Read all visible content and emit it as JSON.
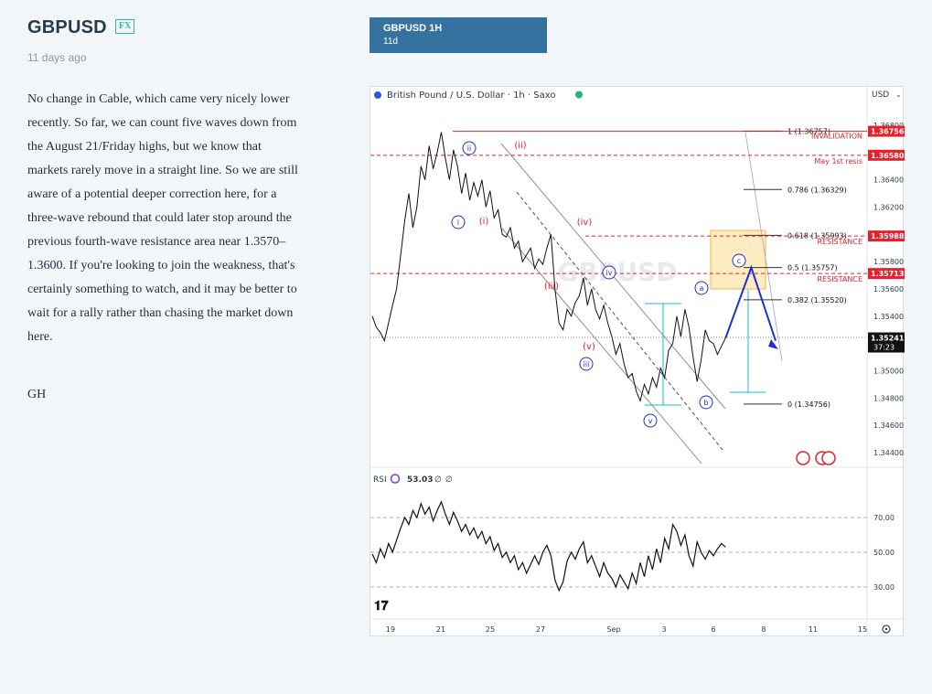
{
  "post": {
    "symbol": "GBPUSD",
    "badge": "FX",
    "time_ago": "11 days ago",
    "body": "No change in Cable, which came very nicely lower recently. So far, we can count five waves down from the August 21/Friday highs, but we know that markets rarely move in a straight line. So we are still aware of a potential deeper correction here, for a three-wave rebound that could later stop around the previous fourth-wave resistance area near 1.3570–1.3600. If you're looking to join the weakness, that's certainly something to watch, and it may be better to wait for a rally rather than chasing the market down here.",
    "signature": "GH"
  },
  "tab": {
    "title": "GBPUSD 1H",
    "subtitle": "11d"
  },
  "chart_header": {
    "instrument": "British Pound / U.S. Dollar · 1h · Saxo",
    "currency": "USD",
    "watermark": "GBPUSD"
  },
  "colors": {
    "accent": "#3572a0",
    "badge": "#2fb8a8",
    "red": "#e8202a",
    "blue": "#1f2fd0",
    "teal": "#19b9c9",
    "fib_box": "#f5a623"
  },
  "chart_data": {
    "type": "line",
    "price_axis": {
      "ticks": [
        "1.36800",
        "1.36400",
        "1.36200",
        "1.35800",
        "1.35600",
        "1.35400",
        "1.35000",
        "1.34800",
        "1.34600",
        "1.34400"
      ]
    },
    "price_labels": [
      {
        "value": "1.36756",
        "color": "red"
      },
      {
        "value": "1.36580",
        "color": "red"
      },
      {
        "value": "1.35988",
        "color": "red"
      },
      {
        "value": "1.35713",
        "color": "red"
      },
      {
        "value": "1.35241",
        "time": "37:23",
        "color": "black"
      }
    ],
    "fib_levels": [
      {
        "label": "1 (1.36757)",
        "price": 1.36757
      },
      {
        "label": "0.786 (1.36329)",
        "price": 1.36329
      },
      {
        "label": "0.618 (1.35993)",
        "price": 1.35993
      },
      {
        "label": "0.5 (1.35757)",
        "price": 1.35757
      },
      {
        "label": "0.382 (1.35520)",
        "price": 1.3552
      },
      {
        "label": "0 (1.34756)",
        "price": 1.34756
      }
    ],
    "annotations": [
      "INVALIDATION",
      "May 1st resis",
      "RESISTANCE",
      "RESISTANCE"
    ],
    "wave_labels_red": [
      "(i)",
      "(ii)",
      "(iii)",
      "(iv)",
      "(v)"
    ],
    "wave_labels_blue": [
      "i",
      "ii",
      "iii",
      "iv",
      "v",
      "a",
      "b",
      "c"
    ],
    "price_series": [
      [
        0,
        1.354
      ],
      [
        3,
        1.3532
      ],
      [
        6,
        1.3528
      ],
      [
        9,
        1.3522
      ],
      [
        12,
        1.3535
      ],
      [
        15,
        1.3548
      ],
      [
        18,
        1.356
      ],
      [
        21,
        1.3585
      ],
      [
        24,
        1.361
      ],
      [
        27,
        1.363
      ],
      [
        30,
        1.3605
      ],
      [
        33,
        1.362
      ],
      [
        36,
        1.365
      ],
      [
        39,
        1.364
      ],
      [
        42,
        1.3665
      ],
      [
        45,
        1.3648
      ],
      [
        48,
        1.366
      ],
      [
        51,
        1.3675
      ],
      [
        54,
        1.3656
      ],
      [
        57,
        1.364
      ],
      [
        60,
        1.3662
      ],
      [
        63,
        1.365
      ],
      [
        66,
        1.363
      ],
      [
        69,
        1.3645
      ],
      [
        72,
        1.3625
      ],
      [
        75,
        1.3638
      ],
      [
        78,
        1.3628
      ],
      [
        81,
        1.364
      ],
      [
        84,
        1.362
      ],
      [
        87,
        1.3632
      ],
      [
        90,
        1.3612
      ],
      [
        93,
        1.3618
      ],
      [
        96,
        1.36
      ],
      [
        99,
        1.3598
      ],
      [
        102,
        1.3605
      ],
      [
        105,
        1.359
      ],
      [
        108,
        1.3595
      ],
      [
        111,
        1.358
      ],
      [
        114,
        1.3585
      ],
      [
        117,
        1.359
      ],
      [
        120,
        1.3575
      ],
      [
        123,
        1.3582
      ],
      [
        126,
        1.3578
      ],
      [
        129,
        1.359
      ],
      [
        132,
        1.36
      ],
      [
        135,
        1.356
      ],
      [
        138,
        1.3535
      ],
      [
        141,
        1.353
      ],
      [
        144,
        1.3545
      ],
      [
        147,
        1.354
      ],
      [
        150,
        1.355
      ],
      [
        153,
        1.3555
      ],
      [
        156,
        1.3568
      ],
      [
        159,
        1.3548
      ],
      [
        162,
        1.356
      ],
      [
        165,
        1.3545
      ],
      [
        168,
        1.3538
      ],
      [
        171,
        1.3548
      ],
      [
        174,
        1.3535
      ],
      [
        177,
        1.3525
      ],
      [
        180,
        1.3512
      ],
      [
        183,
        1.352
      ],
      [
        186,
        1.3505
      ],
      [
        189,
        1.3495
      ],
      [
        192,
        1.3498
      ],
      [
        195,
        1.3485
      ],
      [
        198,
        1.3478
      ],
      [
        201,
        1.349
      ],
      [
        204,
        1.3483
      ],
      [
        207,
        1.3495
      ],
      [
        210,
        1.3488
      ],
      [
        213,
        1.3502
      ],
      [
        216,
        1.3495
      ],
      [
        219,
        1.3515
      ],
      [
        222,
        1.352
      ],
      [
        225,
        1.354
      ],
      [
        228,
        1.3525
      ],
      [
        231,
        1.3545
      ],
      [
        234,
        1.3532
      ],
      [
        237,
        1.351
      ],
      [
        240,
        1.3492
      ],
      [
        243,
        1.3508
      ],
      [
        246,
        1.353
      ],
      [
        249,
        1.3522
      ],
      [
        252,
        1.352
      ],
      [
        255,
        1.3512
      ],
      [
        258,
        1.3518
      ],
      [
        261,
        1.3524
      ]
    ],
    "projection": [
      [
        261,
        1.3524
      ],
      [
        280,
        1.35757
      ],
      [
        298,
        1.3522
      ]
    ],
    "x_ticks": [
      "19",
      "21",
      "25",
      "27",
      "Sep",
      "3",
      "6",
      "8",
      "11",
      "15"
    ],
    "rsi": {
      "label": "RSI",
      "value": "53.03",
      "levels": [
        "70.00",
        "50.00",
        "30.00"
      ],
      "series": [
        [
          0,
          49
        ],
        [
          3,
          44
        ],
        [
          6,
          52
        ],
        [
          9,
          47
        ],
        [
          12,
          55
        ],
        [
          15,
          50
        ],
        [
          18,
          57
        ],
        [
          21,
          64
        ],
        [
          24,
          70
        ],
        [
          27,
          66
        ],
        [
          30,
          74
        ],
        [
          33,
          70
        ],
        [
          36,
          78
        ],
        [
          39,
          72
        ],
        [
          42,
          76
        ],
        [
          45,
          68
        ],
        [
          48,
          74
        ],
        [
          51,
          79
        ],
        [
          54,
          72
        ],
        [
          57,
          66
        ],
        [
          60,
          73
        ],
        [
          63,
          68
        ],
        [
          66,
          62
        ],
        [
          69,
          66
        ],
        [
          72,
          60
        ],
        [
          75,
          64
        ],
        [
          78,
          58
        ],
        [
          81,
          62
        ],
        [
          84,
          55
        ],
        [
          87,
          59
        ],
        [
          90,
          51
        ],
        [
          93,
          55
        ],
        [
          96,
          47
        ],
        [
          99,
          50
        ],
        [
          102,
          44
        ],
        [
          105,
          48
        ],
        [
          108,
          40
        ],
        [
          111,
          44
        ],
        [
          114,
          38
        ],
        [
          117,
          43
        ],
        [
          120,
          48
        ],
        [
          123,
          43
        ],
        [
          126,
          50
        ],
        [
          129,
          54
        ],
        [
          132,
          48
        ],
        [
          135,
          34
        ],
        [
          138,
          28
        ],
        [
          141,
          33
        ],
        [
          144,
          45
        ],
        [
          147,
          50
        ],
        [
          150,
          46
        ],
        [
          153,
          52
        ],
        [
          156,
          56
        ],
        [
          159,
          44
        ],
        [
          162,
          48
        ],
        [
          165,
          42
        ],
        [
          168,
          36
        ],
        [
          171,
          44
        ],
        [
          174,
          38
        ],
        [
          177,
          35
        ],
        [
          180,
          30
        ],
        [
          183,
          37
        ],
        [
          186,
          33
        ],
        [
          189,
          29
        ],
        [
          192,
          38
        ],
        [
          195,
          32
        ],
        [
          198,
          44
        ],
        [
          201,
          36
        ],
        [
          204,
          48
        ],
        [
          207,
          40
        ],
        [
          210,
          52
        ],
        [
          213,
          44
        ],
        [
          216,
          58
        ],
        [
          219,
          52
        ],
        [
          222,
          66
        ],
        [
          225,
          62
        ],
        [
          228,
          54
        ],
        [
          231,
          60
        ],
        [
          234,
          48
        ],
        [
          237,
          42
        ],
        [
          240,
          56
        ],
        [
          243,
          50
        ],
        [
          246,
          46
        ],
        [
          249,
          51
        ],
        [
          252,
          48
        ],
        [
          255,
          52
        ],
        [
          258,
          55
        ],
        [
          261,
          53
        ]
      ]
    }
  }
}
